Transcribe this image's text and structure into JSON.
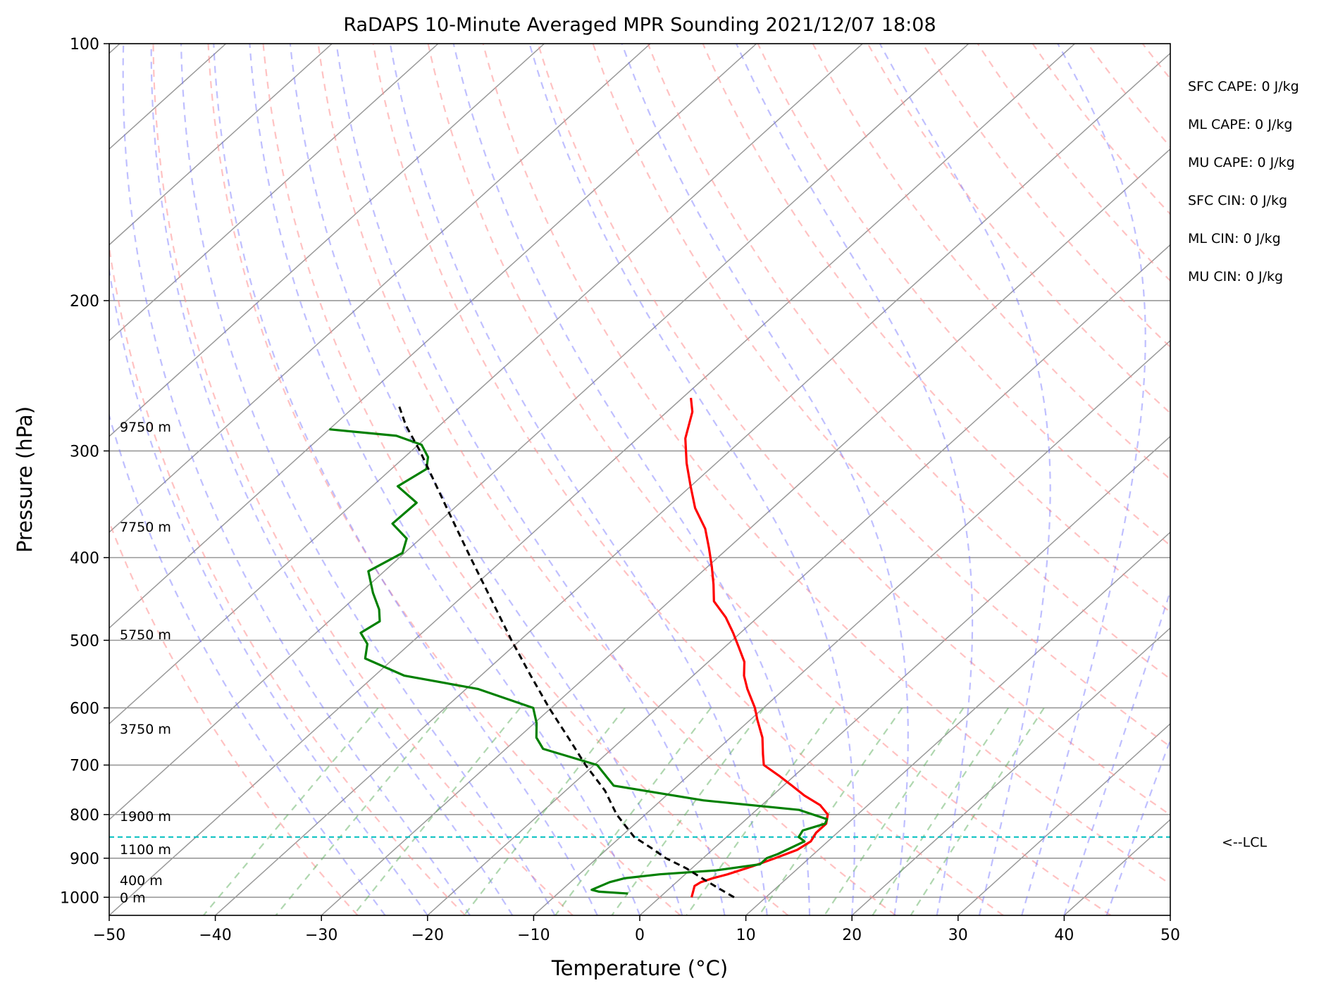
{
  "chart_data": {
    "type": "line",
    "title": "RaDAPS 10-Minute Averaged MPR Sounding 2021/12/07 18:08",
    "xlabel": "Temperature (°C)",
    "ylabel": "Pressure (hPa)",
    "xlim": [
      -50,
      50
    ],
    "ylim": [
      1050,
      100
    ],
    "y_scale": "log",
    "skew_t": true,
    "grid": true,
    "x_ticks": [
      "−50",
      "−40",
      "−30",
      "−20",
      "−10",
      "0",
      "10",
      "20",
      "30",
      "40",
      "50"
    ],
    "x_tick_values": [
      -50,
      -40,
      -30,
      -20,
      -10,
      0,
      10,
      20,
      30,
      40,
      50
    ],
    "y_ticks": [
      "100",
      "200",
      "300",
      "400",
      "500",
      "600",
      "700",
      "800",
      "900",
      "1000"
    ],
    "y_tick_values": [
      100,
      200,
      300,
      400,
      500,
      600,
      700,
      800,
      900,
      1000
    ],
    "series": [
      {
        "color": "#ff0000",
        "style": "solid",
        "points": [
          [
            1000,
            3.0
          ],
          [
            980,
            2.4
          ],
          [
            970,
            2.1
          ],
          [
            960,
            2.3
          ],
          [
            950,
            3.0
          ],
          [
            940,
            4.0
          ],
          [
            920,
            5.5
          ],
          [
            900,
            6.8
          ],
          [
            880,
            8.0
          ],
          [
            860,
            8.4
          ],
          [
            840,
            8.0
          ],
          [
            820,
            8.0
          ],
          [
            800,
            7.2
          ],
          [
            780,
            5.5
          ],
          [
            760,
            3.0
          ],
          [
            740,
            0.8
          ],
          [
            720,
            -1.5
          ],
          [
            700,
            -4.0
          ],
          [
            680,
            -5.2
          ],
          [
            650,
            -7.0
          ],
          [
            620,
            -9.3
          ],
          [
            600,
            -10.8
          ],
          [
            570,
            -13.5
          ],
          [
            550,
            -15.2
          ],
          [
            530,
            -16.6
          ],
          [
            510,
            -18.6
          ],
          [
            490,
            -20.7
          ],
          [
            470,
            -23.0
          ],
          [
            450,
            -25.8
          ],
          [
            430,
            -27.6
          ],
          [
            410,
            -29.6
          ],
          [
            390,
            -31.8
          ],
          [
            370,
            -34.2
          ],
          [
            350,
            -37.3
          ],
          [
            330,
            -40.0
          ],
          [
            310,
            -42.8
          ],
          [
            290,
            -45.5
          ],
          [
            270,
            -47.6
          ],
          [
            260,
            -49.2
          ]
        ]
      },
      {
        "color": "#008000",
        "style": "solid",
        "points": [
          [
            990,
            -3.4
          ],
          [
            985,
            -6.3
          ],
          [
            980,
            -7.2
          ],
          [
            960,
            -6.3
          ],
          [
            950,
            -5.3
          ],
          [
            940,
            -2.4
          ],
          [
            930,
            2.5
          ],
          [
            915,
            6.0
          ],
          [
            900,
            6.0
          ],
          [
            890,
            6.6
          ],
          [
            880,
            7.0
          ],
          [
            860,
            7.8
          ],
          [
            850,
            6.8
          ],
          [
            835,
            6.5
          ],
          [
            820,
            7.9
          ],
          [
            810,
            7.6
          ],
          [
            790,
            4.0
          ],
          [
            770,
            -6.0
          ],
          [
            740,
            -16.0
          ],
          [
            700,
            -19.7
          ],
          [
            670,
            -26.5
          ],
          [
            650,
            -28.3
          ],
          [
            625,
            -29.8
          ],
          [
            600,
            -31.7
          ],
          [
            570,
            -38.9
          ],
          [
            550,
            -47.2
          ],
          [
            525,
            -52.7
          ],
          [
            505,
            -54.0
          ],
          [
            490,
            -55.8
          ],
          [
            475,
            -55.2
          ],
          [
            460,
            -56.5
          ],
          [
            440,
            -58.8
          ],
          [
            415,
            -61.5
          ],
          [
            395,
            -60.2
          ],
          [
            380,
            -61.3
          ],
          [
            365,
            -64.2
          ],
          [
            345,
            -64.1
          ],
          [
            330,
            -67.6
          ],
          [
            315,
            -66.7
          ],
          [
            305,
            -67.8
          ],
          [
            295,
            -69.7
          ],
          [
            288,
            -73.0
          ],
          [
            283,
            -80.0
          ]
        ]
      },
      {
        "color": "#000000",
        "style": "dashed",
        "points": [
          [
            1000,
            7.0
          ],
          [
            975,
            4.5
          ],
          [
            950,
            2.0
          ],
          [
            925,
            -0.5
          ],
          [
            900,
            -3.5
          ],
          [
            875,
            -6.0
          ],
          [
            850,
            -8.7
          ],
          [
            800,
            -12.7
          ],
          [
            750,
            -16.3
          ],
          [
            700,
            -20.8
          ],
          [
            650,
            -25.3
          ],
          [
            600,
            -30.2
          ],
          [
            550,
            -35.3
          ],
          [
            500,
            -40.8
          ],
          [
            450,
            -46.7
          ],
          [
            400,
            -53.3
          ],
          [
            350,
            -60.7
          ],
          [
            300,
            -69.2
          ],
          [
            280,
            -73.2
          ],
          [
            265,
            -76.0
          ]
        ]
      }
    ],
    "lcl": {
      "pressure": 850,
      "label": "<--LCL",
      "color": "#00bfbf"
    },
    "height_labels": [
      {
        "label": "0 m",
        "pressure": 1000
      },
      {
        "label": "400 m",
        "pressure": 955
      },
      {
        "label": "1100 m",
        "pressure": 878
      },
      {
        "label": "1900 m",
        "pressure": 803
      },
      {
        "label": "3750 m",
        "pressure": 635
      },
      {
        "label": "5750 m",
        "pressure": 492
      },
      {
        "label": "7750 m",
        "pressure": 368
      },
      {
        "label": "9750 m",
        "pressure": 281
      }
    ],
    "indices": [
      "SFC CAPE: 0 J/kg",
      "ML CAPE: 0 J/kg",
      "MU CAPE: 0 J/kg",
      "SFC CIN: 0 J/kg",
      "ML CIN: 0 J/kg",
      "MU CIN: 0 J/kg"
    ],
    "dry_adiabat_color": "#ff9090",
    "moist_adiabat_color": "#7070ff",
    "mixing_ratio_color": "#60b060",
    "isotherm_color": "#999999"
  }
}
